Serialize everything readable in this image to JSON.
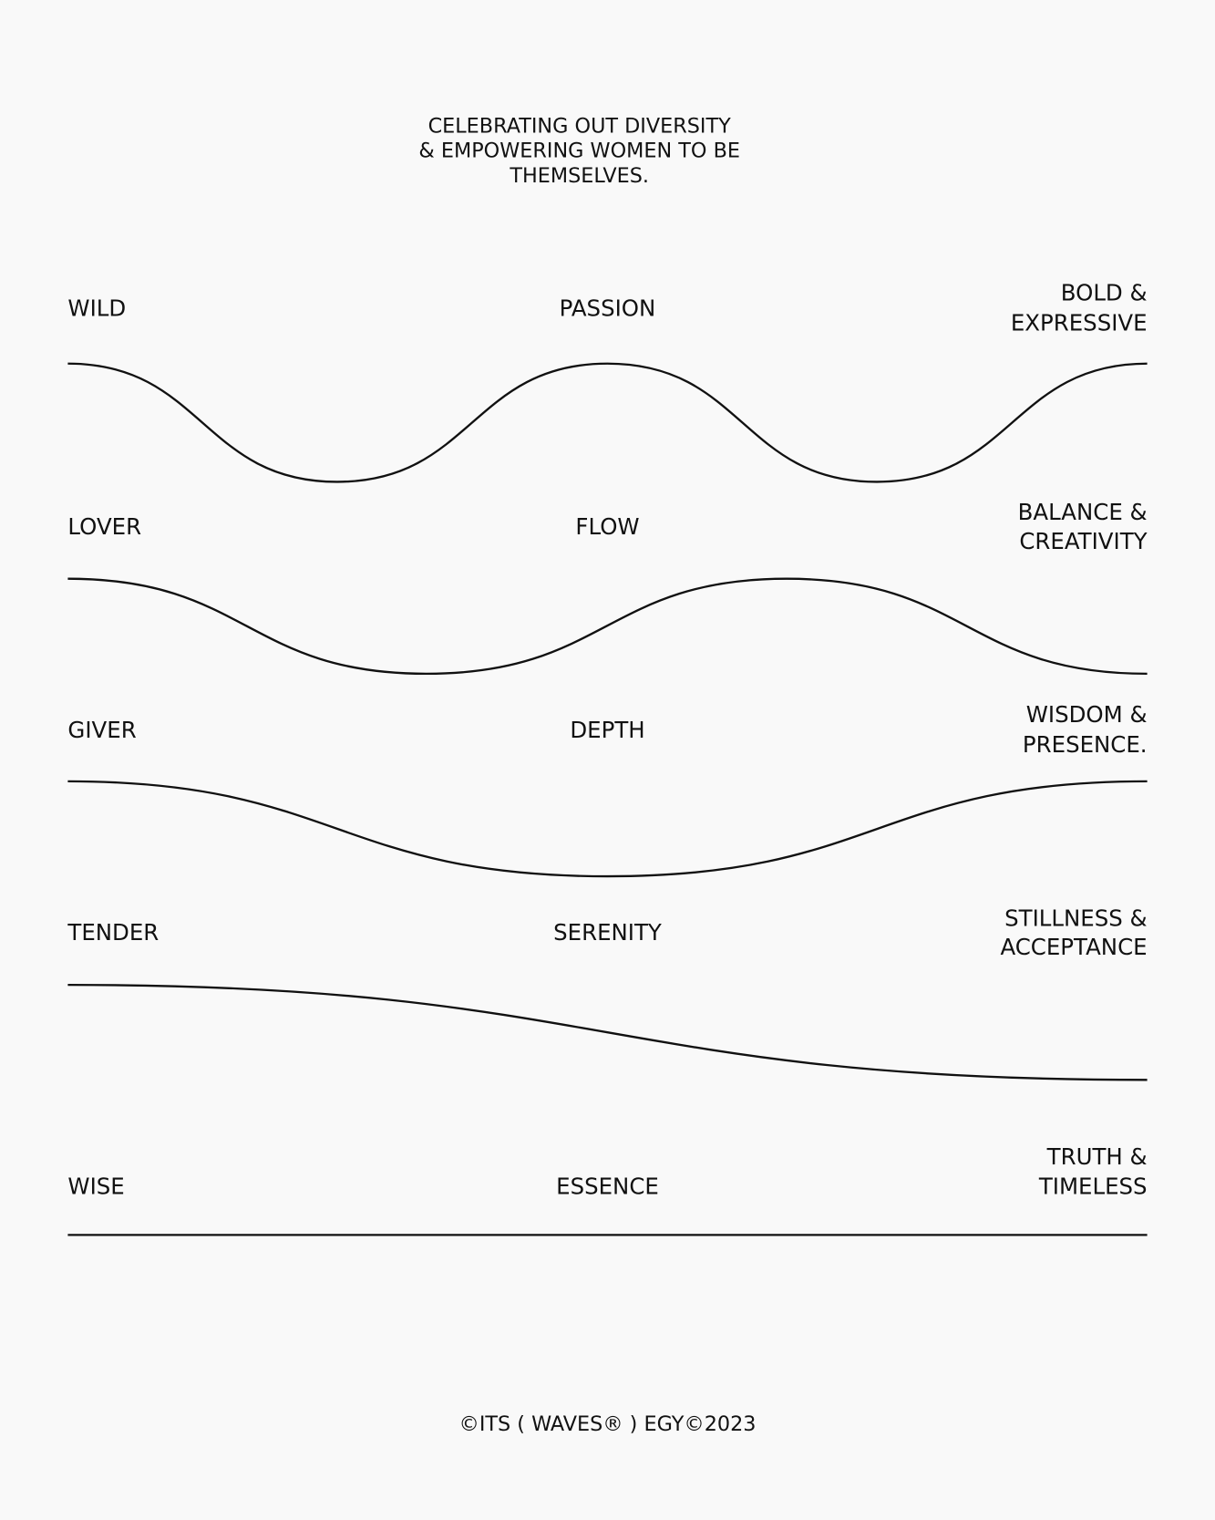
{
  "header": {
    "lines": [
      "CELEBRATING OUT DIVERSITY",
      "& EMPOWERING WOMEN TO BE",
      "THEMSELVES."
    ]
  },
  "rows": [
    {
      "left": "WILD",
      "center": "PASSION",
      "right": [
        "BOLD &",
        "EXPRESSIVE"
      ]
    },
    {
      "left": "LOVER",
      "center": "FLOW",
      "right": [
        "BALANCE &",
        "CREATIVITY"
      ]
    },
    {
      "left": "GIVER",
      "center": "DEPTH",
      "right": [
        "WISDOM &",
        "PRESENCE."
      ]
    },
    {
      "left": "TENDER",
      "center": "SERENITY",
      "right": [
        "STILLNESS &",
        "ACCEPTANCE"
      ]
    },
    {
      "left": "WISE",
      "center": "ESSENCE",
      "right": [
        "TRUTH &",
        "TIMELESS"
      ]
    }
  ],
  "footer": "©ITS ( WAVES® ) EGY©2023"
}
